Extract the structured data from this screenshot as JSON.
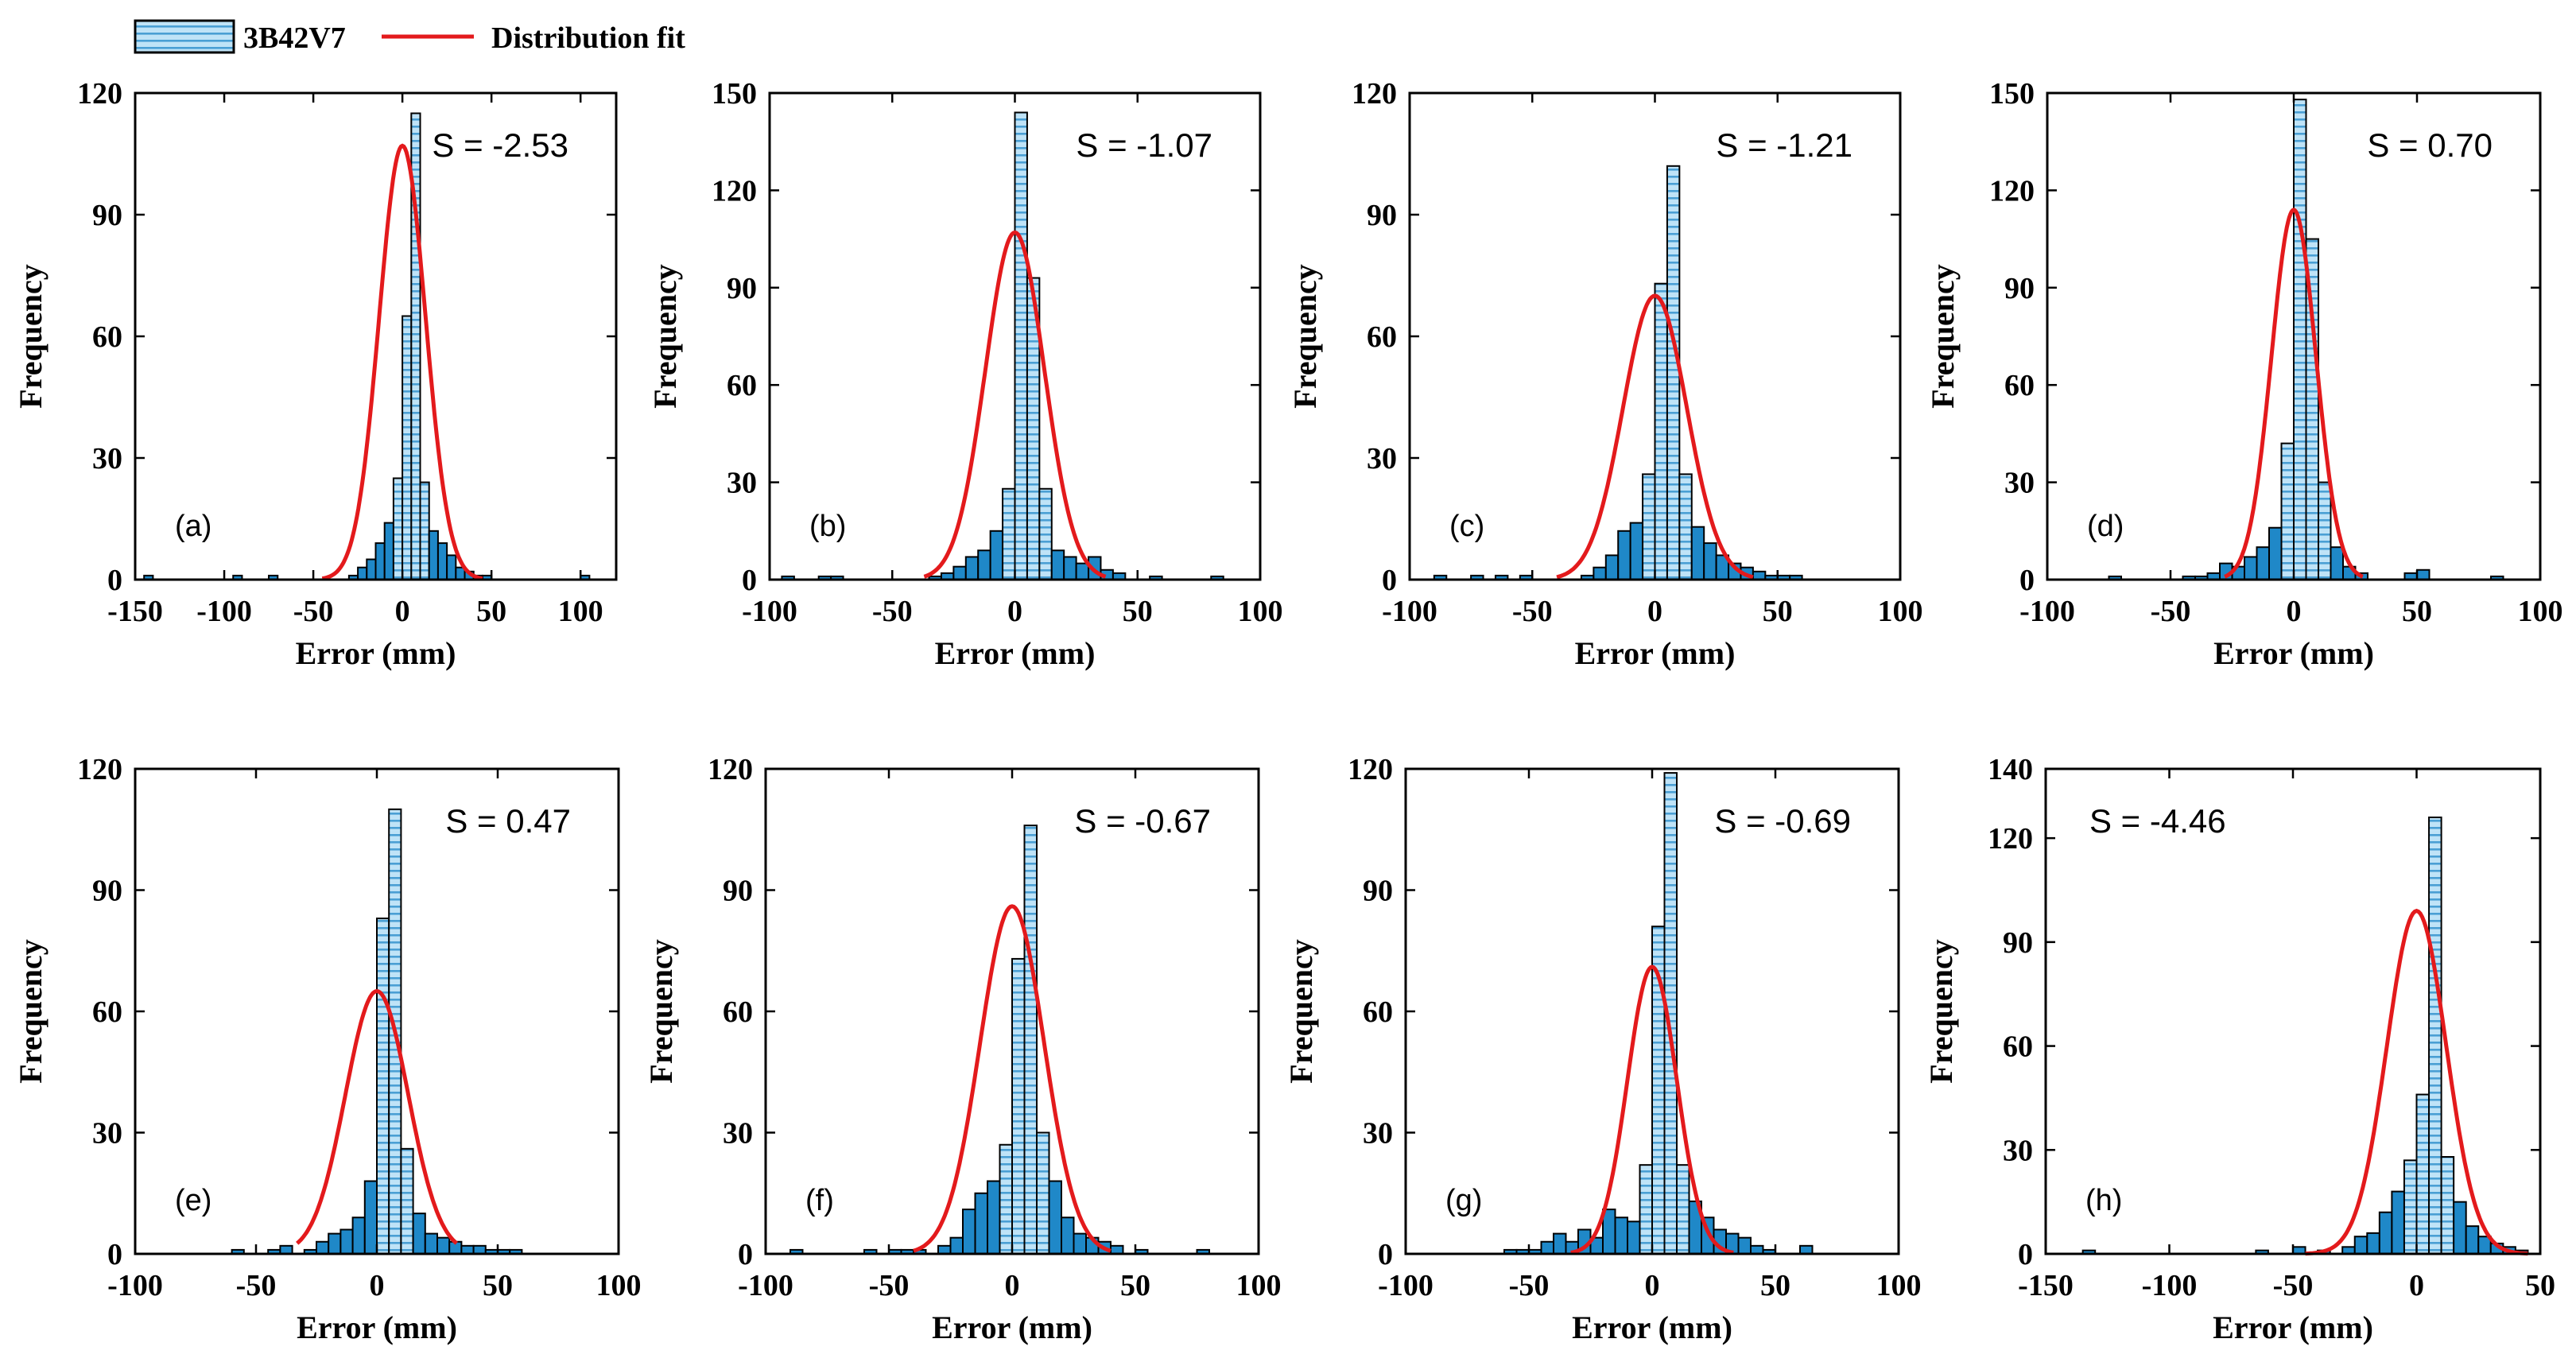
{
  "legend": {
    "histogram_label": "3B42V7",
    "fit_label": "Distribution fit"
  },
  "colors": {
    "bar_light": "#bfe3f7",
    "bar_dark": "#1f88c8",
    "bar_stripe": "#4a9fd4",
    "fit_line": "#e31a1c",
    "axis": "#000000"
  },
  "chart_data": [
    {
      "type": "bar",
      "panel": "(a)",
      "stat": "S = -2.53",
      "xlabel": "Error (mm)",
      "ylabel": "Frequency",
      "xlim": [
        -150,
        120
      ],
      "ylim": [
        0,
        120
      ],
      "xticks": [
        -150,
        -100,
        -50,
        0,
        50,
        100
      ],
      "yticks": [
        0,
        30,
        60,
        90,
        120
      ],
      "bin_width": 5,
      "bins": [
        [
          -145,
          1
        ],
        [
          -95,
          1
        ],
        [
          -75,
          1
        ],
        [
          -30,
          1
        ],
        [
          -25,
          3
        ],
        [
          -20,
          5
        ],
        [
          -15,
          9
        ],
        [
          -10,
          14
        ],
        [
          -5,
          25
        ],
        [
          0,
          65
        ],
        [
          5,
          115
        ],
        [
          10,
          24
        ],
        [
          15,
          12
        ],
        [
          20,
          9
        ],
        [
          25,
          6
        ],
        [
          30,
          3
        ],
        [
          35,
          2
        ],
        [
          40,
          1
        ],
        [
          45,
          1
        ],
        [
          100,
          1
        ]
      ],
      "fit": {
        "mu": 0,
        "sigma": 13,
        "peak": 107,
        "range": [
          -45,
          45
        ]
      }
    },
    {
      "type": "bar",
      "panel": "(b)",
      "stat": "S = -1.07",
      "xlabel": "Error (mm)",
      "ylabel": "Frequency",
      "xlim": [
        -100,
        100
      ],
      "ylim": [
        0,
        150
      ],
      "xticks": [
        -100,
        -50,
        0,
        50,
        100
      ],
      "yticks": [
        0,
        30,
        60,
        90,
        120,
        150
      ],
      "bin_width": 5,
      "bins": [
        [
          -95,
          1
        ],
        [
          -80,
          1
        ],
        [
          -75,
          1
        ],
        [
          -35,
          1
        ],
        [
          -30,
          2
        ],
        [
          -25,
          4
        ],
        [
          -20,
          7
        ],
        [
          -15,
          9
        ],
        [
          -10,
          15
        ],
        [
          -5,
          28
        ],
        [
          0,
          144
        ],
        [
          5,
          93
        ],
        [
          10,
          28
        ],
        [
          15,
          9
        ],
        [
          20,
          7
        ],
        [
          25,
          5
        ],
        [
          30,
          7
        ],
        [
          35,
          3
        ],
        [
          40,
          2
        ],
        [
          55,
          1
        ],
        [
          80,
          1
        ]
      ],
      "fit": {
        "mu": 0,
        "sigma": 12,
        "peak": 107,
        "range": [
          -37,
          37
        ]
      }
    },
    {
      "type": "bar",
      "panel": "(c)",
      "stat": "S = -1.21",
      "xlabel": "Error (mm)",
      "ylabel": "Frequency",
      "xlim": [
        -100,
        100
      ],
      "ylim": [
        0,
        120
      ],
      "xticks": [
        -100,
        -50,
        0,
        50,
        100
      ],
      "yticks": [
        0,
        30,
        60,
        90,
        120
      ],
      "bin_width": 5,
      "bins": [
        [
          -90,
          1
        ],
        [
          -75,
          1
        ],
        [
          -65,
          1
        ],
        [
          -55,
          1
        ],
        [
          -30,
          1
        ],
        [
          -25,
          3
        ],
        [
          -20,
          6
        ],
        [
          -15,
          12
        ],
        [
          -10,
          14
        ],
        [
          -5,
          26
        ],
        [
          0,
          73
        ],
        [
          5,
          102
        ],
        [
          10,
          26
        ],
        [
          15,
          13
        ],
        [
          20,
          9
        ],
        [
          25,
          6
        ],
        [
          30,
          4
        ],
        [
          35,
          3
        ],
        [
          40,
          2
        ],
        [
          45,
          1
        ],
        [
          50,
          1
        ],
        [
          55,
          1
        ]
      ],
      "fit": {
        "mu": 0,
        "sigma": 13,
        "peak": 70,
        "range": [
          -40,
          40
        ]
      }
    },
    {
      "type": "bar",
      "panel": "(d)",
      "stat": "S = 0.70",
      "xlabel": "Error (mm)",
      "ylabel": "Frequency",
      "xlim": [
        -100,
        100
      ],
      "ylim": [
        0,
        150
      ],
      "xticks": [
        -100,
        -50,
        0,
        50,
        100
      ],
      "yticks": [
        0,
        30,
        60,
        90,
        120,
        150
      ],
      "bin_width": 5,
      "bins": [
        [
          -75,
          1
        ],
        [
          -45,
          1
        ],
        [
          -40,
          1
        ],
        [
          -35,
          2
        ],
        [
          -30,
          5
        ],
        [
          -25,
          4
        ],
        [
          -20,
          7
        ],
        [
          -15,
          10
        ],
        [
          -10,
          16
        ],
        [
          -5,
          42
        ],
        [
          0,
          148
        ],
        [
          5,
          105
        ],
        [
          10,
          30
        ],
        [
          15,
          10
        ],
        [
          20,
          4
        ],
        [
          25,
          2
        ],
        [
          45,
          2
        ],
        [
          50,
          3
        ],
        [
          80,
          1
        ]
      ],
      "fit": {
        "mu": 0,
        "sigma": 9,
        "peak": 114,
        "range": [
          -28,
          28
        ]
      }
    },
    {
      "type": "bar",
      "panel": "(e)",
      "stat": "S = 0.47",
      "xlabel": "Error (mm)",
      "ylabel": "Frequency",
      "xlim": [
        -100,
        100
      ],
      "ylim": [
        0,
        120
      ],
      "xticks": [
        -100,
        -50,
        0,
        50,
        100
      ],
      "yticks": [
        0,
        30,
        60,
        90,
        120
      ],
      "bin_width": 5,
      "bins": [
        [
          -60,
          1
        ],
        [
          -45,
          1
        ],
        [
          -40,
          2
        ],
        [
          -30,
          1
        ],
        [
          -25,
          3
        ],
        [
          -20,
          5
        ],
        [
          -15,
          6
        ],
        [
          -10,
          9
        ],
        [
          -5,
          18
        ],
        [
          0,
          83
        ],
        [
          5,
          110
        ],
        [
          10,
          26
        ],
        [
          15,
          10
        ],
        [
          20,
          5
        ],
        [
          25,
          4
        ],
        [
          30,
          3
        ],
        [
          35,
          2
        ],
        [
          40,
          2
        ],
        [
          45,
          1
        ],
        [
          50,
          1
        ],
        [
          55,
          1
        ]
      ],
      "fit": {
        "mu": 0,
        "sigma": 13,
        "peak": 65,
        "range": [
          -33,
          33
        ]
      }
    },
    {
      "type": "bar",
      "panel": "(f)",
      "stat": "S = -0.67",
      "xlabel": "Error (mm)",
      "ylabel": "Frequency",
      "xlim": [
        -100,
        100
      ],
      "ylim": [
        0,
        120
      ],
      "xticks": [
        -100,
        -50,
        0,
        50,
        100
      ],
      "yticks": [
        0,
        30,
        60,
        90,
        120
      ],
      "bin_width": 5,
      "bins": [
        [
          -90,
          1
        ],
        [
          -60,
          1
        ],
        [
          -50,
          1
        ],
        [
          -45,
          1
        ],
        [
          -40,
          1
        ],
        [
          -30,
          2
        ],
        [
          -25,
          4
        ],
        [
          -20,
          11
        ],
        [
          -15,
          15
        ],
        [
          -10,
          18
        ],
        [
          -5,
          27
        ],
        [
          0,
          73
        ],
        [
          5,
          106
        ],
        [
          10,
          30
        ],
        [
          15,
          18
        ],
        [
          20,
          9
        ],
        [
          25,
          5
        ],
        [
          30,
          4
        ],
        [
          35,
          3
        ],
        [
          40,
          2
        ],
        [
          50,
          1
        ],
        [
          75,
          1
        ]
      ],
      "fit": {
        "mu": 0,
        "sigma": 13,
        "peak": 86,
        "range": [
          -40,
          40
        ]
      }
    },
    {
      "type": "bar",
      "panel": "(g)",
      "stat": "S = -0.69",
      "xlabel": "Error (mm)",
      "ylabel": "Frequency",
      "xlim": [
        -100,
        100
      ],
      "ylim": [
        0,
        120
      ],
      "xticks": [
        -100,
        -50,
        0,
        50,
        100
      ],
      "yticks": [
        0,
        30,
        60,
        90,
        120
      ],
      "bin_width": 5,
      "bins": [
        [
          -60,
          1
        ],
        [
          -55,
          1
        ],
        [
          -50,
          1
        ],
        [
          -45,
          3
        ],
        [
          -40,
          5
        ],
        [
          -35,
          3
        ],
        [
          -30,
          6
        ],
        [
          -25,
          4
        ],
        [
          -20,
          11
        ],
        [
          -15,
          9
        ],
        [
          -10,
          8
        ],
        [
          -5,
          22
        ],
        [
          0,
          81
        ],
        [
          5,
          119
        ],
        [
          10,
          22
        ],
        [
          15,
          13
        ],
        [
          20,
          9
        ],
        [
          25,
          6
        ],
        [
          30,
          5
        ],
        [
          35,
          4
        ],
        [
          40,
          2
        ],
        [
          45,
          1
        ],
        [
          60,
          2
        ]
      ],
      "fit": {
        "mu": 0,
        "sigma": 10,
        "peak": 71,
        "range": [
          -33,
          33
        ]
      }
    },
    {
      "type": "bar",
      "panel": "(h)",
      "stat": "S = -4.46",
      "xlabel": "Error (mm)",
      "ylabel": "Frequency",
      "xlim": [
        -150,
        50
      ],
      "ylim": [
        0,
        140
      ],
      "xticks": [
        -150,
        -100,
        -50,
        0,
        50
      ],
      "yticks": [
        0,
        30,
        60,
        90,
        120,
        140
      ],
      "bin_width": 5,
      "bins": [
        [
          -135,
          1
        ],
        [
          -65,
          1
        ],
        [
          -50,
          2
        ],
        [
          -40,
          1
        ],
        [
          -30,
          2
        ],
        [
          -25,
          5
        ],
        [
          -20,
          6
        ],
        [
          -15,
          12
        ],
        [
          -10,
          18
        ],
        [
          -5,
          27
        ],
        [
          0,
          46
        ],
        [
          5,
          126
        ],
        [
          10,
          28
        ],
        [
          15,
          15
        ],
        [
          20,
          8
        ],
        [
          25,
          5
        ],
        [
          30,
          3
        ],
        [
          35,
          2
        ],
        [
          40,
          1
        ]
      ],
      "fit": {
        "mu": 0,
        "sigma": 12,
        "peak": 99,
        "range": [
          -45,
          45
        ]
      }
    }
  ]
}
